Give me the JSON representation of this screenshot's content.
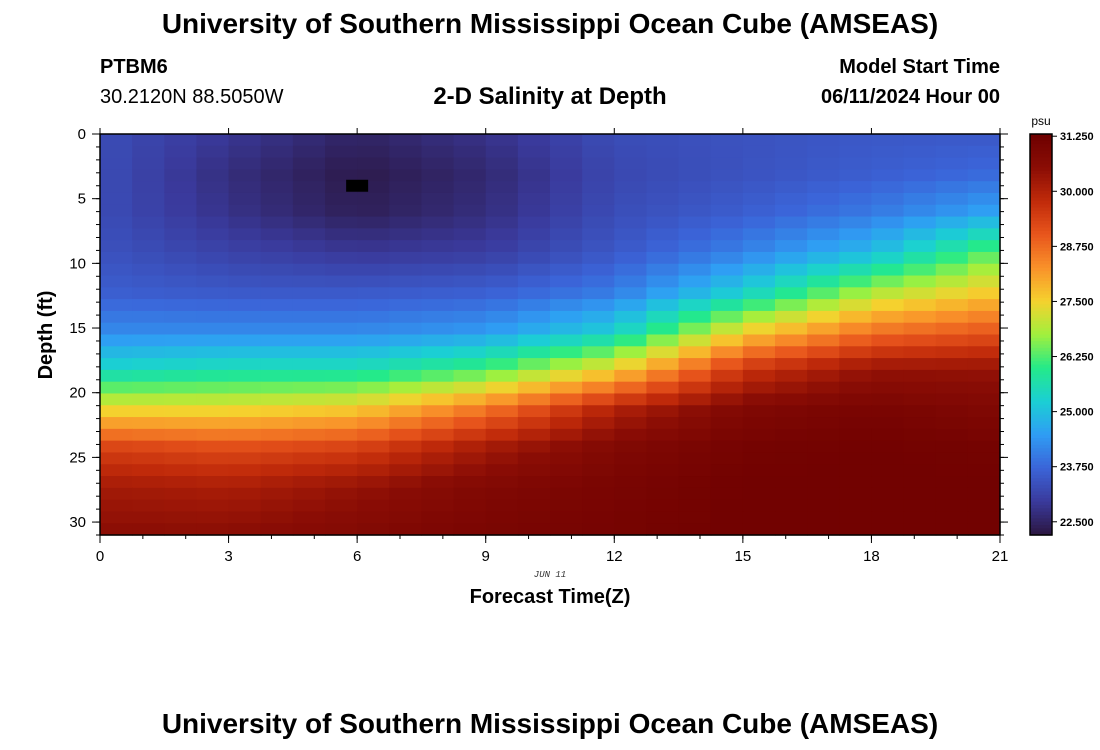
{
  "header": {
    "title": "University of Southern Mississippi Ocean Cube (AMSEAS)",
    "station_id": "PTBM6",
    "coordinates": "30.2120N  88.5050W",
    "model_start_label": "Model Start Time",
    "model_start_value": "06/11/2024 Hour 00"
  },
  "footer": {
    "title": "University of Southern Mississippi Ocean Cube (AMSEAS)"
  },
  "chart_data": {
    "type": "heatmap",
    "title": "2-D Salinity at Depth",
    "xlabel": "Forecast Time(Z)",
    "ylabel": "Depth (ft)",
    "date_annotation": "JUN 11",
    "xlim": [
      0,
      21
    ],
    "ylim": [
      31,
      0
    ],
    "x_ticks": [
      "0",
      "3",
      "6",
      "9",
      "12",
      "15",
      "18",
      "21"
    ],
    "y_ticks": [
      "0",
      "5",
      "10",
      "15",
      "20",
      "25",
      "30"
    ],
    "colorbar": {
      "unit": "psu",
      "range": [
        22.2,
        31.3
      ],
      "tick_labels": [
        "31.250",
        "30.000",
        "28.750",
        "27.500",
        "26.250",
        "25.000",
        "23.750",
        "22.500"
      ],
      "tick_values": [
        31.25,
        30.0,
        28.75,
        27.5,
        26.25,
        25.0,
        23.75,
        22.5
      ],
      "colors": [
        "#2b1640",
        "#3a3a9c",
        "#3b64d8",
        "#2f9df4",
        "#1bcfd4",
        "#24ea89",
        "#a2f03d",
        "#f5d12e",
        "#f9912a",
        "#e8551c",
        "#c02a0a",
        "#8a0d05",
        "#6e0000"
      ]
    },
    "grid": {
      "x_step_hours": 0.75,
      "depth_step_ft": 0.9,
      "description": "Salinity field: low (~22.3 psu) near surface 2-10Z, increasing with depth; high (~31 psu) at depth, halocline rises after 12Z",
      "anchors_depth_ft": [
        0,
        3,
        6,
        9,
        12,
        15,
        18,
        21,
        24,
        27,
        31
      ],
      "anchors_hour": [
        0,
        3,
        6,
        9,
        12,
        15,
        18,
        21
      ],
      "values": [
        [
          23.3,
          22.9,
          22.5,
          22.8,
          23.3,
          23.4,
          23.5,
          23.5
        ],
        [
          23.3,
          22.7,
          22.3,
          22.6,
          23.2,
          23.4,
          23.6,
          23.8
        ],
        [
          23.3,
          22.8,
          22.4,
          22.7,
          23.3,
          23.6,
          24.0,
          24.6
        ],
        [
          23.4,
          23.1,
          22.9,
          23.0,
          23.5,
          24.1,
          24.9,
          26.4
        ],
        [
          23.6,
          23.5,
          23.5,
          23.6,
          24.0,
          25.2,
          26.8,
          27.6
        ],
        [
          24.2,
          24.2,
          24.2,
          24.4,
          25.2,
          27.4,
          28.6,
          29.0
        ],
        [
          25.4,
          25.6,
          25.6,
          26.2,
          27.5,
          29.6,
          30.4,
          30.4
        ],
        [
          27.4,
          27.4,
          27.6,
          28.6,
          30.0,
          30.8,
          31.0,
          30.8
        ],
        [
          29.4,
          29.2,
          29.4,
          30.2,
          30.8,
          31.1,
          31.2,
          31.1
        ],
        [
          30.2,
          30.1,
          30.4,
          30.8,
          31.0,
          31.2,
          31.2,
          31.2
        ],
        [
          30.6,
          30.6,
          30.8,
          31.0,
          31.1,
          31.2,
          31.2,
          31.2
        ]
      ]
    },
    "marker": {
      "hour": 6,
      "depth_ft": 4
    }
  }
}
